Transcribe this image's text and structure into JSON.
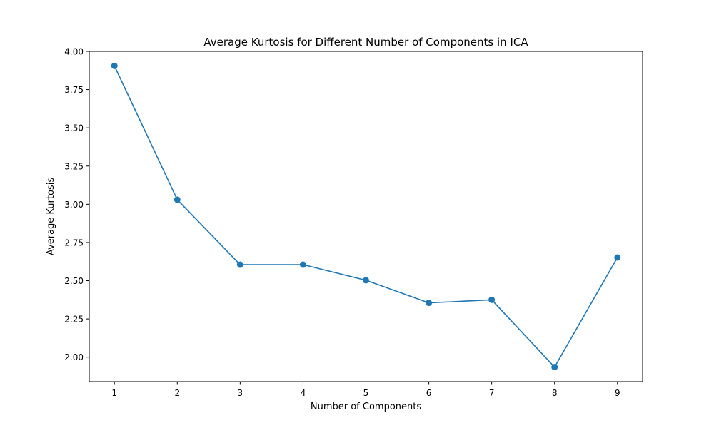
{
  "chart_data": {
    "type": "line",
    "title": "Average Kurtosis for Different Number of Components in ICA",
    "xlabel": "Number of Components",
    "ylabel": "Average Kurtosis",
    "x": [
      1,
      2,
      3,
      4,
      5,
      6,
      7,
      8,
      9
    ],
    "series": [
      {
        "values": [
          3.905,
          3.03,
          2.605,
          2.605,
          2.503,
          2.355,
          2.375,
          1.935,
          2.652
        ],
        "color": "#1f77b4",
        "marker": "circle"
      }
    ],
    "xlim": [
      0.6,
      9.4
    ],
    "ylim": [
      1.84,
      4.0
    ],
    "xticks": [
      1,
      2,
      3,
      4,
      5,
      6,
      7,
      8,
      9
    ],
    "yticks": [
      2.0,
      2.25,
      2.5,
      2.75,
      3.0,
      3.25,
      3.5,
      3.75,
      4.0
    ],
    "ytick_labels": [
      "2.00",
      "2.25",
      "2.50",
      "2.75",
      "3.00",
      "3.25",
      "3.50",
      "3.75",
      "4.00"
    ],
    "grid": false,
    "legend": "none"
  }
}
